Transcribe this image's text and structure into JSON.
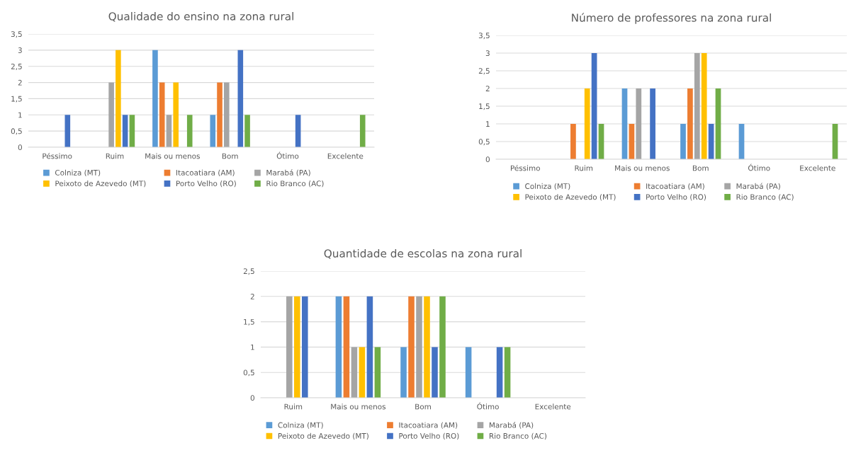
{
  "chart_data": [
    {
      "type": "bar",
      "title": "Qualidade do ensino na zona rural",
      "categories": [
        "Péssimo",
        "Ruim",
        "Mais ou menos",
        "Bom",
        "Ótimo",
        "Excelente"
      ],
      "series": [
        {
          "name": "Colniza (MT)",
          "color": "#5b9bd5",
          "values": [
            0,
            0,
            3,
            1,
            0,
            0
          ]
        },
        {
          "name": "Itacoatiara (AM)",
          "color": "#ed7d31",
          "values": [
            0,
            0,
            2,
            2,
            0,
            0
          ]
        },
        {
          "name": "Marabá (PA)",
          "color": "#a5a5a5",
          "values": [
            0,
            2,
            1,
            2,
            0,
            0
          ]
        },
        {
          "name": "Peixoto de Azevedo (MT)",
          "color": "#ffc000",
          "values": [
            0,
            3,
            2,
            0,
            0,
            0
          ]
        },
        {
          "name": "Porto Velho (RO)",
          "color": "#4472c4",
          "values": [
            1,
            1,
            0,
            3,
            1,
            0
          ]
        },
        {
          "name": "Rio Branco (AC)",
          "color": "#70ad47",
          "values": [
            0,
            1,
            1,
            1,
            0,
            1
          ]
        }
      ],
      "ylim": [
        0,
        3.5
      ],
      "yticks": [
        0,
        {
          "value": 0.5,
          "label": "0,5"
        },
        1,
        {
          "value": 1.5,
          "label": "1,5"
        },
        2,
        {
          "value": 2.5,
          "label": "2,5"
        },
        3,
        {
          "value": 3.5,
          "label": "3,5"
        }
      ],
      "grid": "y",
      "legend": "bottom"
    },
    {
      "type": "bar",
      "title": "Número de professores na zona rural",
      "categories": [
        "Péssimo",
        "Ruim",
        "Mais ou menos",
        "Bom",
        "Ótimo",
        "Excelente"
      ],
      "series": [
        {
          "name": "Colniza (MT)",
          "color": "#5b9bd5",
          "values": [
            0,
            0,
            2,
            1,
            1,
            0
          ]
        },
        {
          "name": "Itacoatiara (AM)",
          "color": "#ed7d31",
          "values": [
            0,
            1,
            1,
            2,
            0,
            0
          ]
        },
        {
          "name": "Marabá (PA)",
          "color": "#a5a5a5",
          "values": [
            0,
            0,
            2,
            3,
            0,
            0
          ]
        },
        {
          "name": "Peixoto de Azevedo (MT)",
          "color": "#ffc000",
          "values": [
            0,
            2,
            0,
            3,
            0,
            0
          ]
        },
        {
          "name": "Porto Velho (RO)",
          "color": "#4472c4",
          "values": [
            0,
            3,
            2,
            1,
            0,
            0
          ]
        },
        {
          "name": "Rio Branco (AC)",
          "color": "#70ad47",
          "values": [
            0,
            1,
            0,
            2,
            0,
            1
          ]
        }
      ],
      "ylim": [
        0,
        3.5
      ],
      "yticks": [
        0,
        {
          "value": 0.5,
          "label": "0,5"
        },
        1,
        {
          "value": 1.5,
          "label": "1,5"
        },
        2,
        {
          "value": 2.5,
          "label": "2,5"
        },
        3,
        {
          "value": 3.5,
          "label": "3,5"
        }
      ],
      "grid": "y",
      "legend": "bottom"
    },
    {
      "type": "bar",
      "title": "Quantidade de escolas na zona rural",
      "categories": [
        "Ruim",
        "Mais ou menos",
        "Bom",
        "Ótimo",
        "Excelente"
      ],
      "series": [
        {
          "name": "Colniza (MT)",
          "color": "#5b9bd5",
          "values": [
            0,
            2,
            1,
            1,
            0
          ]
        },
        {
          "name": "Itacoatiara (AM)",
          "color": "#ed7d31",
          "values": [
            0,
            2,
            2,
            0,
            0
          ]
        },
        {
          "name": "Marabá (PA)",
          "color": "#a5a5a5",
          "values": [
            2,
            1,
            2,
            0,
            0
          ]
        },
        {
          "name": "Peixoto de Azevedo (MT)",
          "color": "#ffc000",
          "values": [
            2,
            1,
            2,
            0,
            0
          ]
        },
        {
          "name": "Porto Velho (RO)",
          "color": "#4472c4",
          "values": [
            2,
            2,
            1,
            1,
            0
          ]
        },
        {
          "name": "Rio Branco (AC)",
          "color": "#70ad47",
          "values": [
            0,
            1,
            2,
            1,
            0
          ]
        }
      ],
      "ylim": [
        0,
        2.5
      ],
      "yticks": [
        0,
        {
          "value": 0.5,
          "label": "0,5"
        },
        1,
        {
          "value": 1.5,
          "label": "1,5"
        },
        2,
        {
          "value": 2.5,
          "label": "2,5"
        }
      ],
      "grid": "y",
      "legend": "bottom"
    }
  ]
}
